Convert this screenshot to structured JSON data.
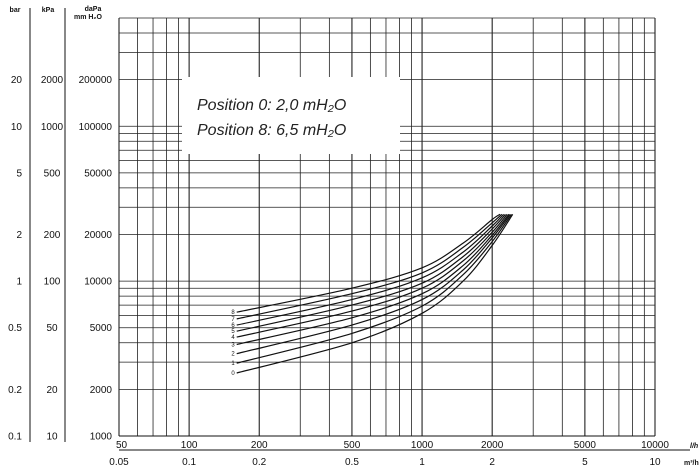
{
  "chart_data": {
    "type": "line",
    "title": "",
    "annotation_lines": [
      "Position 0: 2,0 mH₂O",
      "Position 8: 6,5 mH₂O"
    ],
    "x_axis_scale": "log",
    "y_axis_scale": "log",
    "grid": true,
    "x_axes": [
      {
        "unit": "l/h",
        "ticks": [
          "50",
          "100",
          "200",
          "500",
          "1000",
          "2000",
          "5000",
          "10000"
        ]
      },
      {
        "unit": "m³/h",
        "ticks": [
          "0.05",
          "0.1",
          "0.2",
          "0.5",
          "1",
          "2",
          "5",
          "10"
        ]
      }
    ],
    "y_axes": [
      {
        "unit": "bar",
        "ticks": [
          "20",
          "10",
          "5",
          "2",
          "1",
          "0.5",
          "0.2",
          "0.1"
        ]
      },
      {
        "unit": "kPa",
        "ticks": [
          "2000",
          "1000",
          "500",
          "200",
          "100",
          "50",
          "20",
          "10"
        ]
      },
      {
        "unit": "daPa",
        "unit2": "mm H₂O",
        "ticks": [
          "200000",
          "100000",
          "50000",
          "20000",
          "10000",
          "5000",
          "2000",
          "1000"
        ]
      }
    ],
    "xlim": [
      50,
      10000
    ],
    "ylim_daPa": [
      1000,
      500000
    ],
    "x_unit": "l/h",
    "y_unit": "daPa",
    "series": [
      {
        "name": "0",
        "points": [
          [
            160,
            2550
          ],
          [
            500,
            4000
          ],
          [
            1000,
            6200
          ],
          [
            1500,
            10000
          ],
          [
            2000,
            17000
          ],
          [
            2450,
            27000
          ]
        ]
      },
      {
        "name": "1",
        "points": [
          [
            160,
            2950
          ],
          [
            500,
            4600
          ],
          [
            1000,
            6900
          ],
          [
            1500,
            11000
          ],
          [
            2000,
            18000
          ],
          [
            2420,
            27000
          ]
        ]
      },
      {
        "name": "2",
        "points": [
          [
            160,
            3400
          ],
          [
            500,
            5200
          ],
          [
            1000,
            7600
          ],
          [
            1500,
            11800
          ],
          [
            2000,
            19000
          ],
          [
            2390,
            27000
          ]
        ]
      },
      {
        "name": "3",
        "points": [
          [
            160,
            3900
          ],
          [
            500,
            5800
          ],
          [
            1000,
            8300
          ],
          [
            1500,
            12600
          ],
          [
            2000,
            19800
          ],
          [
            2360,
            27000
          ]
        ]
      },
      {
        "name": "4",
        "points": [
          [
            160,
            4350
          ],
          [
            500,
            6400
          ],
          [
            1000,
            9000
          ],
          [
            1500,
            13500
          ],
          [
            2000,
            20700
          ],
          [
            2320,
            27000
          ]
        ]
      },
      {
        "name": "5",
        "points": [
          [
            160,
            4750
          ],
          [
            500,
            7000
          ],
          [
            1000,
            9700
          ],
          [
            1500,
            14400
          ],
          [
            2000,
            21700
          ],
          [
            2280,
            27000
          ]
        ]
      },
      {
        "name": "6",
        "points": [
          [
            160,
            5200
          ],
          [
            500,
            7600
          ],
          [
            1000,
            10500
          ],
          [
            1500,
            15400
          ],
          [
            2000,
            22700
          ],
          [
            2240,
            27000
          ]
        ]
      },
      {
        "name": "7",
        "points": [
          [
            160,
            5700
          ],
          [
            500,
            8300
          ],
          [
            1000,
            11300
          ],
          [
            1500,
            16500
          ],
          [
            2000,
            23800
          ],
          [
            2200,
            27000
          ]
        ]
      },
      {
        "name": "8",
        "points": [
          [
            160,
            6300
          ],
          [
            500,
            9000
          ],
          [
            1000,
            12200
          ],
          [
            1500,
            17600
          ],
          [
            2000,
            25000
          ],
          [
            2160,
            27000
          ]
        ]
      }
    ]
  }
}
